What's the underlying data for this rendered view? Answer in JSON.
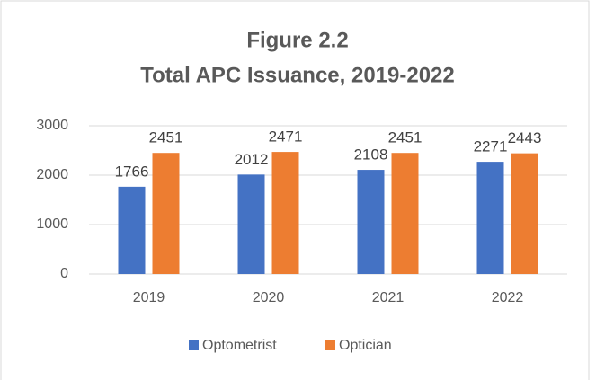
{
  "chart_data": {
    "type": "bar",
    "title": "Figure 2.2",
    "subtitle": "Total APC Issuance, 2019-2022",
    "categories": [
      "2019",
      "2020",
      "2021",
      "2022"
    ],
    "series": [
      {
        "name": "Optometrist",
        "color": "#4472c4",
        "values": [
          1766,
          2012,
          2108,
          2271
        ]
      },
      {
        "name": "Optician",
        "color": "#ed7d31",
        "values": [
          2451,
          2471,
          2451,
          2443
        ]
      }
    ],
    "ylim": [
      0,
      3000
    ],
    "yticks": [
      0,
      1000,
      2000,
      3000
    ],
    "grid": true,
    "legend": "bottom"
  }
}
